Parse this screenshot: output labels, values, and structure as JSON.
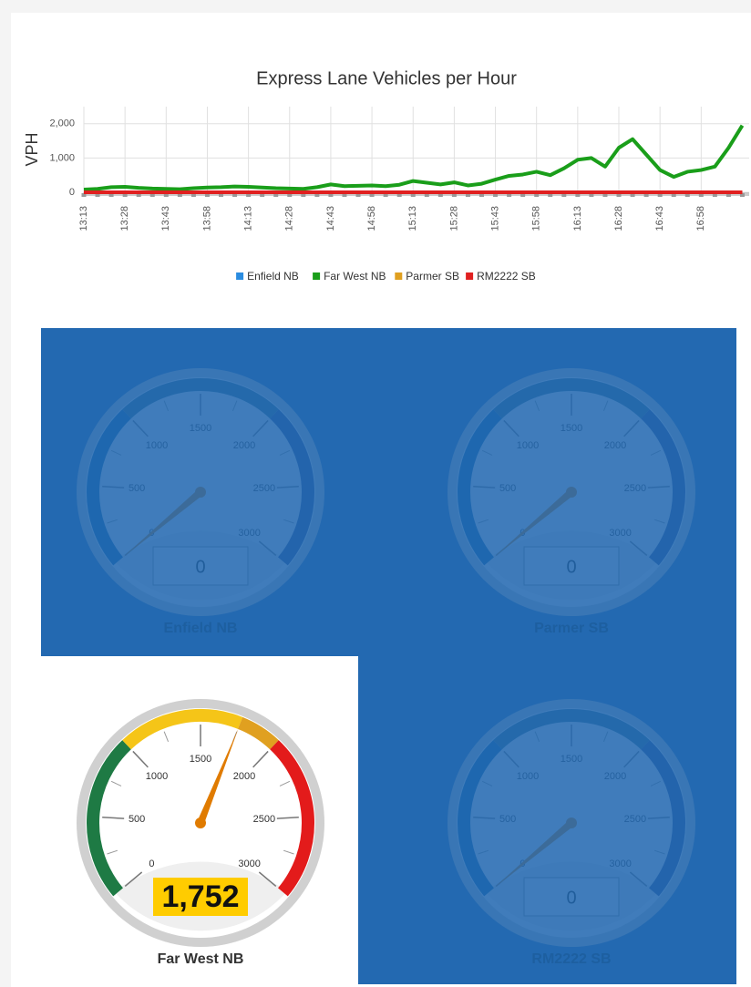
{
  "chart_data": [
    {
      "type": "line",
      "title": "Express Lane Vehicles per Hour",
      "y_label": "VPH",
      "categories": [
        "13:13",
        null,
        null,
        "13:28",
        null,
        null,
        "13:43",
        null,
        null,
        "13:58",
        null,
        null,
        "14:13",
        null,
        null,
        "14:28",
        null,
        null,
        "14:43",
        null,
        null,
        "14:58",
        null,
        null,
        "15:13",
        null,
        null,
        "15:28",
        null,
        null,
        "15:43",
        null,
        null,
        "15:58",
        null,
        null,
        "16:13",
        null,
        null,
        "16:28",
        null,
        null,
        "16:43",
        null,
        null,
        "16:58",
        null,
        null,
        null
      ],
      "series": [
        {
          "name": "Enfield NB",
          "color": "#2b8ce0",
          "values": [
            0,
            0,
            0,
            0,
            0,
            0,
            0,
            0,
            0,
            0,
            0,
            0,
            0,
            0,
            0,
            0,
            0,
            0,
            0,
            0,
            0,
            0,
            0,
            0,
            0,
            0,
            0,
            0,
            0,
            0,
            0,
            0,
            0,
            0,
            0,
            0,
            0,
            0,
            0,
            0,
            0,
            0,
            0,
            0,
            0,
            0,
            0,
            0,
            0
          ]
        },
        {
          "name": "Far West NB",
          "color": "#1a9e1a",
          "values": [
            80,
            100,
            150,
            160,
            130,
            110,
            100,
            90,
            120,
            140,
            150,
            170,
            160,
            140,
            120,
            110,
            100,
            150,
            230,
            180,
            190,
            200,
            180,
            220,
            330,
            280,
            230,
            290,
            200,
            250,
            370,
            480,
            520,
            600,
            500,
            700,
            950,
            1000,
            750,
            1300,
            1550,
            1100,
            650,
            450,
            600,
            650,
            750,
            1300,
            1950
          ]
        },
        {
          "name": "Parmer SB",
          "color": "#e0a020",
          "values": [
            0,
            0,
            0,
            0,
            0,
            0,
            0,
            0,
            0,
            0,
            0,
            0,
            0,
            0,
            0,
            0,
            0,
            0,
            0,
            0,
            0,
            0,
            0,
            0,
            0,
            0,
            0,
            0,
            0,
            0,
            0,
            0,
            0,
            0,
            0,
            0,
            0,
            0,
            0,
            0,
            0,
            0,
            0,
            0,
            0,
            0,
            0,
            0,
            0
          ]
        },
        {
          "name": "RM2222 SB",
          "color": "#e02020",
          "values": [
            0,
            0,
            0,
            0,
            0,
            0,
            0,
            0,
            0,
            0,
            0,
            0,
            0,
            0,
            0,
            0,
            0,
            0,
            0,
            0,
            0,
            0,
            0,
            0,
            0,
            0,
            0,
            0,
            0,
            0,
            0,
            0,
            0,
            0,
            0,
            0,
            0,
            0,
            0,
            0,
            0,
            0,
            0,
            0,
            0,
            0,
            0,
            0,
            0
          ]
        }
      ],
      "ylim": [
        0,
        2500
      ],
      "yticks": [
        0,
        {
          "value": 1000,
          "label": "1,000"
        },
        {
          "value": 2000,
          "label": "2,000"
        }
      ],
      "grid": true,
      "legend": "bottom"
    },
    {
      "type": "gauge",
      "title": "Enfield NB",
      "value": 0,
      "range": [
        0,
        3000
      ],
      "ticks": [
        0,
        500,
        1000,
        1500,
        2000,
        2500,
        3000
      ],
      "dimmed": true,
      "bands": [
        {
          "from": 0,
          "to": 1000,
          "color": "#005fa8"
        },
        {
          "from": 1000,
          "to": 2000,
          "color": "#2f6c8a"
        },
        {
          "from": 2000,
          "to": 3000,
          "color": "#27468f"
        }
      ]
    },
    {
      "type": "gauge",
      "title": "Parmer SB",
      "value": 0,
      "range": [
        0,
        3000
      ],
      "ticks": [
        0,
        500,
        1000,
        1500,
        2000,
        2500,
        3000
      ],
      "dimmed": true,
      "bands": [
        {
          "from": 0,
          "to": 1000,
          "color": "#005fa8"
        },
        {
          "from": 1000,
          "to": 2000,
          "color": "#2f6c8a"
        },
        {
          "from": 2000,
          "to": 3000,
          "color": "#27468f"
        }
      ]
    },
    {
      "type": "gauge",
      "title": "Far West NB",
      "value": 1752,
      "value_label": "1,752",
      "range": [
        0,
        3000
      ],
      "ticks": [
        0,
        500,
        1000,
        1500,
        2000,
        2500,
        3000
      ],
      "dimmed": false,
      "bands": [
        {
          "from": 0,
          "to": 1000,
          "color": "#1e7a44"
        },
        {
          "from": 1000,
          "to": 1750,
          "color": "#f5c518"
        },
        {
          "from": 1750,
          "to": 2000,
          "color": "#e0a020"
        },
        {
          "from": 2000,
          "to": 3000,
          "color": "#e31b1b"
        }
      ]
    },
    {
      "type": "gauge",
      "title": "RM2222 SB",
      "value": 0,
      "range": [
        0,
        3000
      ],
      "ticks": [
        0,
        500,
        1000,
        1500,
        2000,
        2500,
        3000
      ],
      "dimmed": true,
      "bands": [
        {
          "from": 0,
          "to": 1000,
          "color": "#005fa8"
        },
        {
          "from": 1000,
          "to": 2000,
          "color": "#2f6c8a"
        },
        {
          "from": 2000,
          "to": 3000,
          "color": "#27468f"
        }
      ]
    }
  ]
}
